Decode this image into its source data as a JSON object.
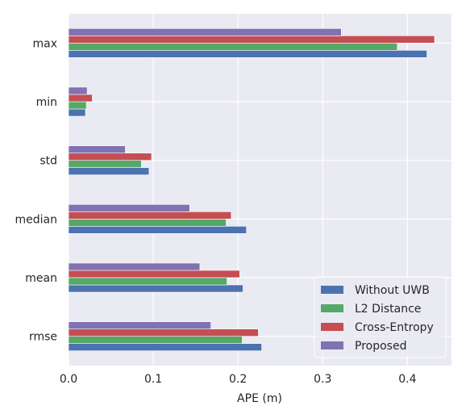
{
  "chart_data": {
    "type": "bar",
    "orientation": "horizontal",
    "categories": [
      "rmse",
      "mean",
      "median",
      "std",
      "min",
      "max"
    ],
    "series": [
      {
        "name": "Without UWB",
        "color": "#4c72b0",
        "values": [
          0.228,
          0.206,
          0.21,
          0.095,
          0.02,
          0.423
        ]
      },
      {
        "name": "L2 Distance",
        "color": "#55a868",
        "values": [
          0.205,
          0.187,
          0.186,
          0.086,
          0.021,
          0.388
        ]
      },
      {
        "name": "Cross-Entropy",
        "color": "#c44e52",
        "values": [
          0.224,
          0.202,
          0.192,
          0.098,
          0.028,
          0.432
        ]
      },
      {
        "name": "Proposed",
        "color": "#8172b2",
        "values": [
          0.168,
          0.155,
          0.143,
          0.067,
          0.022,
          0.322
        ]
      }
    ],
    "xlabel": "APE (m)",
    "ylabel": "",
    "xlim": [
      0,
      0.452
    ],
    "xticks": [
      "0.0",
      "0.1",
      "0.2",
      "0.3",
      "0.4"
    ],
    "grid": true,
    "legend_position": "lower-right",
    "background": "#eaeaf2"
  }
}
